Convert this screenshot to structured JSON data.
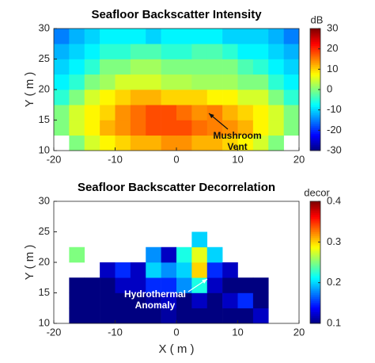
{
  "chart_data": [
    {
      "type": "heatmap",
      "title": "Seafloor Backscatter Intensity",
      "colormap": "jet",
      "x": [
        -18.75,
        -16.25,
        -13.75,
        -11.25,
        -8.75,
        -6.25,
        -3.75,
        -1.25,
        1.25,
        3.75,
        6.25,
        8.75,
        11.25,
        13.75,
        16.25,
        18.75
      ],
      "y": [
        11.25,
        13.75,
        16.25,
        18.75,
        21.25,
        23.75,
        26.25,
        28.75
      ],
      "z": [
        [
          null,
          0,
          5,
          8,
          10,
          12,
          12,
          14,
          14,
          12,
          12,
          10,
          8,
          5,
          0,
          null
        ],
        [
          0,
          5,
          8,
          12,
          14,
          16,
          18,
          18,
          18,
          16,
          15,
          14,
          12,
          8,
          5,
          0
        ],
        [
          0,
          5,
          8,
          10,
          14,
          16,
          18,
          18,
          16,
          14,
          15,
          12,
          10,
          8,
          5,
          0
        ],
        [
          -5,
          0,
          5,
          8,
          10,
          12,
          12,
          10,
          10,
          10,
          8,
          8,
          5,
          5,
          0,
          -5
        ],
        [
          -8,
          -5,
          0,
          2,
          5,
          5,
          5,
          3,
          3,
          2,
          2,
          2,
          0,
          0,
          -5,
          -8
        ],
        [
          -10,
          -8,
          -5,
          0,
          0,
          2,
          2,
          0,
          0,
          0,
          0,
          0,
          -3,
          -5,
          -8,
          -10
        ],
        [
          -12,
          -10,
          -8,
          -5,
          -5,
          -3,
          -3,
          -5,
          -5,
          -3,
          -3,
          -5,
          -8,
          -8,
          -10,
          -12
        ],
        [
          -15,
          -12,
          -10,
          -8,
          -8,
          -8,
          -10,
          -8,
          -8,
          -8,
          -8,
          -10,
          -10,
          -10,
          -12,
          -15
        ]
      ],
      "xlim": [
        -20,
        20
      ],
      "ylim": [
        10,
        30
      ],
      "xticks": [
        -20,
        -10,
        0,
        10,
        20
      ],
      "yticks": [
        10,
        15,
        20,
        25,
        30
      ],
      "ylabel": "Y ( m )",
      "zlabel": "dB",
      "zlim": [
        -30,
        30
      ],
      "zticks": [
        -30,
        -20,
        -10,
        0,
        10,
        20,
        30
      ],
      "annotation": {
        "lines": [
          "Mushroom",
          "Vent"
        ],
        "color": "#111111"
      }
    },
    {
      "type": "heatmap",
      "title": "Seafloor Backscatter Decorrelation",
      "colormap": "jet",
      "x": [
        -18.75,
        -16.25,
        -13.75,
        -11.25,
        -8.75,
        -6.25,
        -3.75,
        -1.25,
        1.25,
        3.75,
        6.25,
        8.75,
        11.25,
        13.75,
        16.25,
        18.75
      ],
      "y": [
        11.25,
        13.75,
        16.25,
        18.75,
        21.25,
        23.75,
        26.25,
        28.75
      ],
      "z": [
        [
          null,
          0.1,
          0.1,
          0.1,
          0.1,
          0.1,
          0.1,
          0.11,
          0.1,
          0.1,
          0.1,
          0.1,
          0.1,
          0.12,
          null,
          null
        ],
        [
          null,
          0.1,
          0.1,
          0.1,
          0.1,
          0.1,
          0.11,
          0.12,
          0.1,
          0.12,
          0.1,
          0.12,
          0.15,
          0.1,
          null,
          null
        ],
        [
          null,
          0.1,
          0.1,
          0.1,
          0.12,
          0.12,
          0.15,
          0.15,
          0.18,
          0.22,
          0.12,
          0.1,
          0.1,
          0.1,
          null,
          null
        ],
        [
          null,
          null,
          null,
          0.12,
          0.15,
          0.12,
          0.2,
          0.18,
          0.2,
          0.3,
          0.15,
          0.12,
          null,
          null,
          null,
          null
        ],
        [
          null,
          0.25,
          null,
          null,
          null,
          null,
          0.18,
          0.12,
          0.22,
          0.28,
          0.2,
          null,
          null,
          null,
          null,
          null
        ],
        [
          null,
          null,
          null,
          null,
          null,
          null,
          null,
          null,
          null,
          0.2,
          null,
          null,
          null,
          null,
          null,
          null
        ],
        [
          null,
          null,
          null,
          null,
          null,
          null,
          null,
          null,
          null,
          null,
          null,
          null,
          null,
          null,
          null,
          null
        ],
        [
          null,
          null,
          null,
          null,
          null,
          null,
          null,
          null,
          null,
          null,
          null,
          null,
          null,
          null,
          null,
          null
        ]
      ],
      "xlim": [
        -20,
        20
      ],
      "ylim": [
        10,
        30
      ],
      "xticks": [
        -20,
        -10,
        0,
        10,
        20
      ],
      "yticks": [
        10,
        15,
        20,
        25,
        30
      ],
      "xlabel": "X ( m )",
      "ylabel": "Y ( m )",
      "zlabel": "decor",
      "zlim": [
        0.1,
        0.4
      ],
      "zticks": [
        0.1,
        0.2,
        0.3,
        0.4
      ],
      "annotation": {
        "lines": [
          "Hydrothermal",
          "Anomaly"
        ],
        "color": "#ffffff"
      }
    }
  ]
}
